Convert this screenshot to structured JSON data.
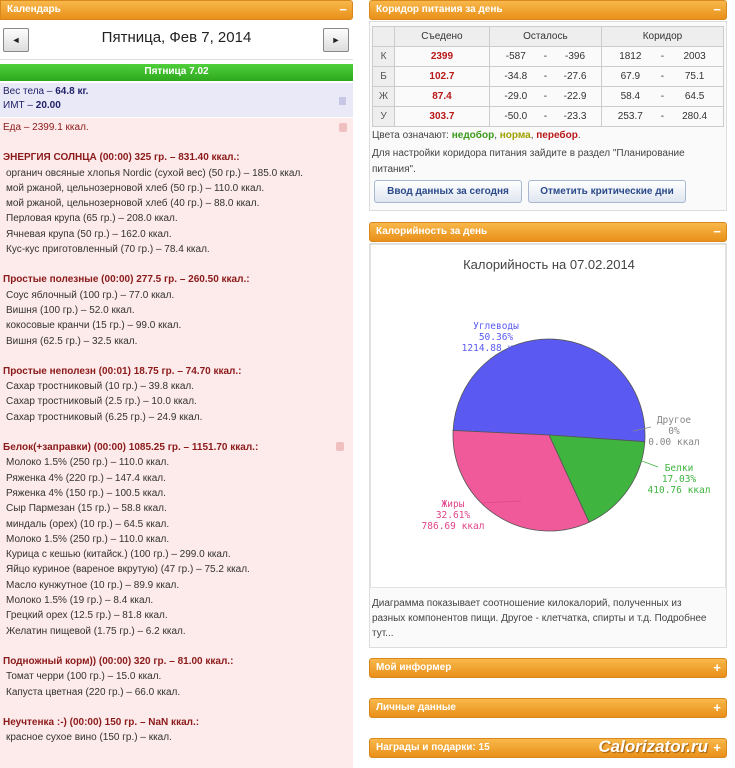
{
  "calendar": {
    "panel_title": "Календарь",
    "toggle": "−",
    "prev_label": "◄",
    "next_label": "►",
    "date": "Пятница, Фев 7, 2014",
    "day_label": "Пятница 7.02"
  },
  "body": {
    "weight_label": "Вес тела",
    "weight_value": "64.8 кг.",
    "bmi_label": "ИМТ",
    "bmi_value": "20.00"
  },
  "food": {
    "total": "Еда – 2399.1 ккал.",
    "meals": [
      {
        "title": "ЭНЕРГИЯ СОЛНЦА (00:00) 325 гр. – 831.40 ккал.:",
        "items": [
          "органич овсяные хлопья Nordic (сухой вес) (50 гр.) – 185.0 ккал.",
          "мой ржаной, цельнозерновой хлеб (50 гр.) – 110.0 ккал.",
          "мой ржаной, цельнозерновой хлеб (40 гр.) – 88.0 ккал.",
          "Перловая крупа (65 гр.) – 208.0 ккал.",
          "Ячневая крупа (50 гр.) – 162.0 ккал.",
          "Кус-кус приготовленный (70 гр.) – 78.4 ккал."
        ]
      },
      {
        "title": "Простые полезные (00:00) 277.5 гр. – 260.50 ккал.:",
        "items": [
          "Соус яблочный (100 гр.) – 77.0 ккал.",
          "Вишня (100 гр.) – 52.0 ккал.",
          "кокосовые кранчи (15 гр.) – 99.0 ккал.",
          "Вишня (62.5 гр.) – 32.5 ккал."
        ]
      },
      {
        "title": "Простые неполезн (00:01) 18.75 гр. – 74.70 ккал.:",
        "items": [
          "Сахар тростниковый (10 гр.) – 39.8 ккал.",
          "Сахар тростниковый (2.5 гр.) – 10.0 ккал.",
          "Сахар тростниковый (6.25 гр.) – 24.9 ккал."
        ]
      },
      {
        "title": "Белок(+заправки) (00:00) 1085.25 гр. – 1151.70 ккал.:",
        "items": [
          "Молоко 1.5% (250 гр.) – 110.0 ккал.",
          "Ряженка 4% (220 гр.) – 147.4 ккал.",
          "Ряженка 4% (150 гр.) – 100.5 ккал.",
          "Сыр Пармезан (15 гр.) – 58.8 ккал.",
          "миндаль (орех) (10 гр.) – 64.5 ккал.",
          "Молоко 1.5% (250 гр.) – 110.0 ккал.",
          "Курица с кешью (китайск.) (100 гр.) – 299.0 ккал.",
          "Яйцо куриное (вареное вкрутую) (47 гр.) – 75.2 ккал.",
          "Масло кунжутное (10 гр.) – 89.9 ккал.",
          "Молоко 1.5% (19 гр.) – 8.4 ккал.",
          "Грецкий орех (12.5 гр.) – 81.8 ккал.",
          "Желатин пищевой (1.75 гр.) – 6.2 ккал."
        ]
      },
      {
        "title": "Подножный корм)) (00:00) 320 гр. – 81.00 ккал.:",
        "items": [
          "Томат черри (100 гр.) – 15.0 ккал.",
          "Капуста цветная (220 гр.) – 66.0 ккал."
        ]
      },
      {
        "title": "Неучтенка :-) (00:00) 150 гр. – NaN ккал.:",
        "items": [
          "красное сухое вино (150 гр.) – ккал."
        ]
      }
    ]
  },
  "corridor": {
    "panel_title": "Коридор питания за день",
    "toggle": "−",
    "headers": [
      "",
      "Съедено",
      "Осталось",
      "Коридор"
    ],
    "rows": [
      {
        "label": "К",
        "eaten": "2399",
        "left_min": "-587",
        "left_max": "-396",
        "corr_min": "1812",
        "corr_max": "2003"
      },
      {
        "label": "Б",
        "eaten": "102.7",
        "left_min": "-34.8",
        "left_max": "-27.6",
        "corr_min": "67.9",
        "corr_max": "75.1"
      },
      {
        "label": "Ж",
        "eaten": "87.4",
        "left_min": "-29.0",
        "left_max": "-22.9",
        "corr_min": "58.4",
        "corr_max": "64.5"
      },
      {
        "label": "У",
        "eaten": "303.7",
        "left_min": "-50.0",
        "left_max": "-23.3",
        "corr_min": "253.7",
        "corr_max": "280.4"
      }
    ],
    "dash": "-",
    "colors_prefix": "Цвета означают:",
    "color_under": "недобор",
    "color_norm": "норма",
    "color_over": "перебор",
    "note": "Для настройки коридора питания зайдите в раздел \"Планирование питания\".",
    "btn_input": "Ввод данных за сегодня",
    "btn_critical": "Отметить критические дни"
  },
  "calories": {
    "panel_title": "Калорийность за день",
    "toggle": "−",
    "description": "Диаграмма показывает соотношение килокалорий, полученных из разных компонентов пищи. Другое - клетчатка, спирты и т.д. Подробнее тут..."
  },
  "chart_data": {
    "type": "pie",
    "title": "Калорийность на 07.02.2014",
    "slices": [
      {
        "name": "Углеводы",
        "percent": "50.36%",
        "kcal": "1214.88 ккал",
        "value": 1214.88,
        "color": "#5a5af2"
      },
      {
        "name": "Белки",
        "percent": "17.03%",
        "kcal": "410.76 ккал",
        "value": 410.76,
        "color": "#3fb43f"
      },
      {
        "name": "Жиры",
        "percent": "32.61%",
        "kcal": "786.69 ккал",
        "value": 786.69,
        "color": "#f05a9a"
      },
      {
        "name": "Другое",
        "percent": "0%",
        "kcal": "0.00 ккал",
        "value": 0,
        "color": "#999999"
      }
    ]
  },
  "informer": {
    "panel_title": "Мой информер",
    "toggle": "+"
  },
  "personal": {
    "panel_title": "Личные данные",
    "toggle": "+"
  },
  "awards": {
    "panel_title": "Награды и подарки: 15",
    "toggle": "+",
    "brand": "Calorizator.ru"
  }
}
